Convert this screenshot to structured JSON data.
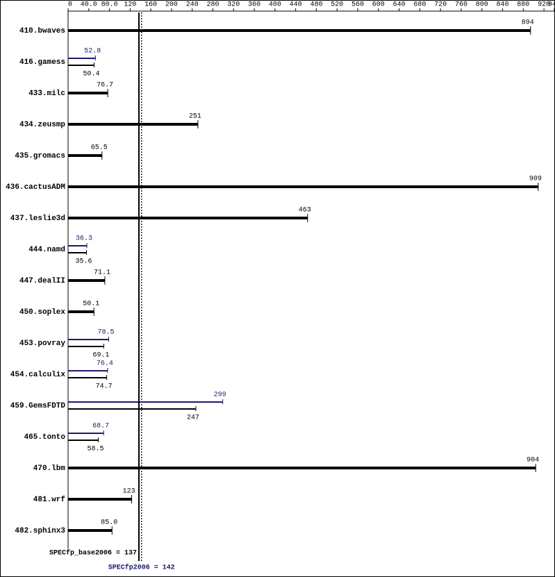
{
  "chart_data": {
    "type": "bar",
    "categories": [
      "410.bwaves",
      "416.gamess",
      "433.milc",
      "434.zeusmp",
      "435.gromacs",
      "436.cactusADM",
      "437.leslie3d",
      "444.namd",
      "447.dealII",
      "450.soplex",
      "453.povray",
      "454.calculix",
      "459.GemsFDTD",
      "465.tonto",
      "470.lbm",
      "481.wrf",
      "482.sphinx3"
    ],
    "series": [
      {
        "color": "#000000",
        "values": [
          894,
          50.4,
          76.7,
          251,
          65.5,
          909,
          463,
          35.6,
          71.1,
          50.1,
          69.1,
          74.7,
          247,
          58.5,
          904,
          123,
          85.0
        ],
        "value_labels": [
          "894",
          "50.4",
          "76.7",
          "251",
          "65.5",
          "909",
          "463",
          "35.6",
          "71.1",
          "50.1",
          "69.1",
          "74.7",
          "247",
          "58.5",
          "904",
          "123",
          "85.0"
        ]
      },
      {
        "color": "#191970",
        "values": [
          null,
          52.8,
          null,
          null,
          null,
          null,
          null,
          36.3,
          null,
          null,
          78.5,
          76.4,
          299,
          68.7,
          null,
          null,
          null
        ]
      }
    ],
    "xlim": [
      0,
      940
    ],
    "xticks": [
      0,
      {
        "value": 40,
        "label": "40.0"
      },
      {
        "value": 80,
        "label": "80.0"
      },
      120,
      160,
      200,
      240,
      280,
      320,
      360,
      400,
      440,
      480,
      520,
      560,
      600,
      640,
      680,
      720,
      760,
      800,
      840,
      880,
      920,
      940
    ],
    "reference_lines": [
      {
        "label": "SPECfp_base2006 = 137",
        "value": 137,
        "color": "#000000"
      },
      {
        "label": "SPECfp2006 = 142",
        "value": 142,
        "color": "#191970"
      }
    ]
  }
}
